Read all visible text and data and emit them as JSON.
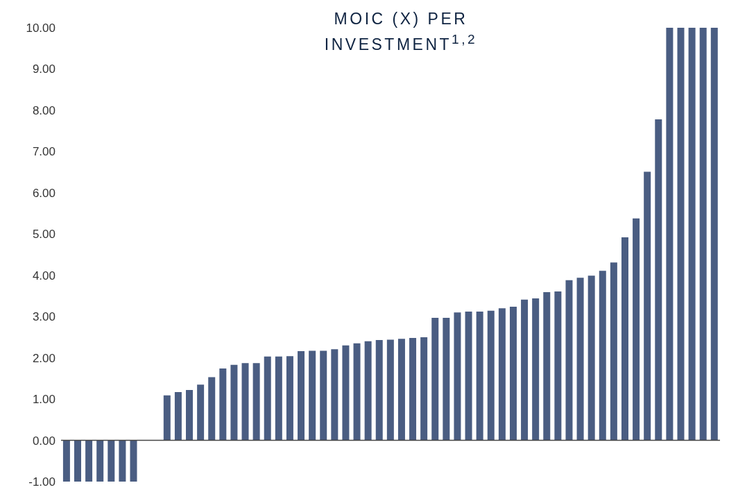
{
  "chart_data": {
    "type": "bar",
    "title": "MOIC (X) PER INVESTMENT$^{1,2}$",
    "categories": [
      null,
      null,
      null,
      null,
      null,
      null,
      null,
      null,
      null,
      null,
      null,
      null,
      null,
      null,
      null,
      null,
      null,
      null,
      null,
      null,
      null,
      null,
      null,
      null,
      null,
      null,
      null,
      null,
      null,
      null,
      null,
      null,
      null,
      null,
      null,
      null,
      null,
      null,
      null,
      null,
      null,
      null,
      null,
      null,
      null,
      null,
      null,
      null,
      null,
      null,
      null,
      null,
      null,
      null,
      null,
      null,
      null,
      null,
      null
    ],
    "values": [
      -1.0,
      -1.0,
      -1.0,
      -1.0,
      -1.0,
      -1.0,
      -1.0,
      null,
      null,
      1.09,
      1.17,
      1.22,
      1.35,
      1.53,
      1.74,
      1.83,
      1.87,
      1.87,
      2.03,
      2.03,
      2.04,
      2.16,
      2.17,
      2.17,
      2.21,
      2.3,
      2.35,
      2.4,
      2.43,
      2.44,
      2.46,
      2.48,
      2.5,
      2.97,
      2.97,
      3.1,
      3.12,
      3.12,
      3.14,
      3.2,
      3.24,
      3.41,
      3.44,
      3.59,
      3.61,
      3.88,
      3.94,
      3.99,
      4.11,
      4.31,
      4.92,
      5.38,
      6.51,
      7.78,
      10.0,
      10.0,
      10.0,
      10.0,
      10.0
    ],
    "color": "#4a5d82",
    "ylim": [
      -1,
      10
    ],
    "yticks": [
      {
        "value": -1,
        "label": "-1.00"
      },
      {
        "value": 0,
        "label": "0.00"
      },
      {
        "value": 1,
        "label": "1.00"
      },
      {
        "value": 2,
        "label": "2.00"
      },
      {
        "value": 3,
        "label": "3.00"
      },
      {
        "value": 4,
        "label": "4.00"
      },
      {
        "value": 5,
        "label": "5.00"
      },
      {
        "value": 6,
        "label": "6.00"
      },
      {
        "value": 7,
        "label": "7.00"
      },
      {
        "value": 8,
        "label": "8.00"
      },
      {
        "value": 9,
        "label": "9.00"
      },
      {
        "value": 10,
        "label": "10.00"
      }
    ],
    "tick_labels": "y",
    "legend": false
  }
}
